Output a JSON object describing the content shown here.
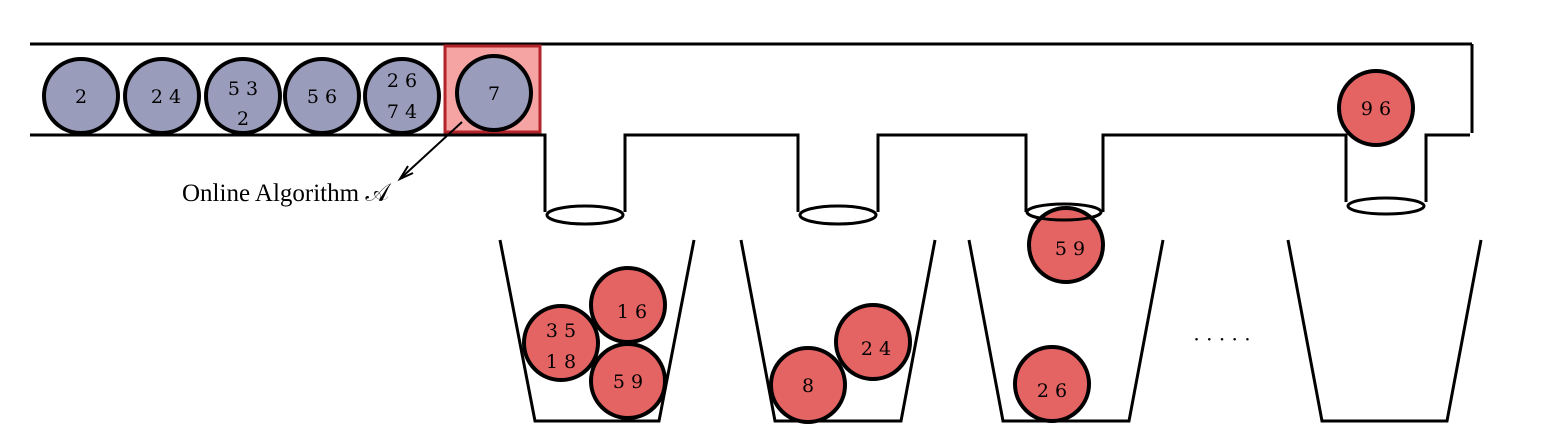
{
  "algorithm_label": "Online Algorithm 𝒜",
  "ellipsis": "· · · · ·",
  "colors": {
    "queue_ball": "#9a9cbb",
    "bin_ball": "#e46363",
    "selector_fill": "#f6a3a3",
    "selector_border": "#b2232a",
    "stroke": "#000000"
  },
  "queue": [
    {
      "lines": [
        "2"
      ]
    },
    {
      "lines": [
        "2 4"
      ]
    },
    {
      "lines": [
        "5 3",
        "2"
      ]
    },
    {
      "lines": [
        "5 6"
      ]
    },
    {
      "lines": [
        "2 6",
        "7 4"
      ]
    },
    {
      "lines": [
        "7"
      ],
      "selected": true
    }
  ],
  "chute_ball": {
    "lines": [
      "9 6"
    ]
  },
  "bins": [
    {
      "balls": [
        {
          "lines": [
            "1 6"
          ]
        },
        {
          "lines": [
            "3 5",
            "1 8"
          ]
        },
        {
          "lines": [
            "5 9"
          ]
        }
      ]
    },
    {
      "balls": [
        {
          "lines": [
            "2 4"
          ]
        },
        {
          "lines": [
            "8"
          ]
        }
      ]
    },
    {
      "balls": [
        {
          "lines": [
            "5 9"
          ]
        },
        {
          "lines": [
            "2 6"
          ]
        }
      ]
    },
    {
      "balls": []
    }
  ]
}
